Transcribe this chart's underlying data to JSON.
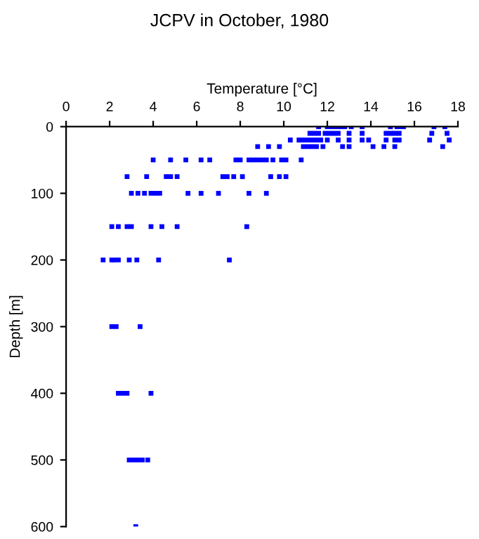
{
  "chart_data": {
    "type": "scatter",
    "title": "JCPV in October, 1980",
    "xlabel": "Temperature [°C]",
    "ylabel": "Depth [m]",
    "xlim": [
      0,
      18
    ],
    "xticks": [
      0,
      2,
      4,
      6,
      8,
      10,
      12,
      14,
      16,
      18
    ],
    "ylim": [
      600,
      0
    ],
    "yticks": [
      0,
      100,
      200,
      300,
      400,
      500,
      600
    ],
    "grid": false,
    "legend": false,
    "marker": "square",
    "series": [
      {
        "color": "#0000ff",
        "x": [
          11.6,
          12.0,
          12.2,
          12.4,
          12.6,
          12.8,
          13.1,
          13.6,
          14.9,
          15.2,
          15.3,
          15.5,
          16.9,
          17.4,
          11.2,
          11.4,
          11.6,
          11.9,
          12.1,
          12.3,
          12.5,
          13.0,
          13.6,
          14.7,
          14.9,
          15.1,
          15.3,
          16.8,
          17.5,
          10.3,
          10.7,
          10.9,
          11.1,
          11.3,
          11.5,
          11.7,
          12.0,
          12.5,
          13.0,
          13.6,
          13.9,
          14.7,
          15.1,
          15.3,
          16.7,
          17.6,
          8.8,
          9.3,
          9.8,
          10.9,
          11.1,
          11.3,
          11.5,
          11.8,
          12.7,
          13.0,
          14.1,
          14.6,
          15.1,
          17.3,
          4.0,
          4.8,
          5.5,
          6.2,
          6.6,
          7.8,
          8.0,
          8.4,
          8.6,
          8.8,
          9.0,
          9.2,
          9.5,
          9.9,
          10.1,
          10.8,
          2.8,
          3.7,
          4.6,
          4.8,
          5.1,
          7.2,
          7.4,
          7.7,
          8.1,
          9.4,
          9.8,
          10.1,
          3.0,
          3.3,
          3.6,
          3.9,
          4.1,
          4.3,
          5.6,
          6.2,
          7.0,
          8.4,
          9.2,
          2.1,
          2.4,
          2.8,
          3.0,
          3.9,
          4.4,
          5.1,
          8.3,
          1.7,
          2.1,
          2.2,
          2.4,
          2.9,
          3.25,
          4.25,
          7.5,
          2.1,
          2.3,
          3.4,
          2.4,
          2.6,
          2.8,
          3.9,
          2.9,
          3.1,
          3.3,
          3.5,
          3.75,
          3.2
        ],
        "values": [
          0,
          0,
          0,
          0,
          0,
          0,
          0,
          0,
          0,
          0,
          0,
          0,
          0,
          0,
          10,
          10,
          10,
          10,
          10,
          10,
          10,
          10,
          10,
          10,
          10,
          10,
          10,
          10,
          10,
          20,
          20,
          20,
          20,
          20,
          20,
          20,
          20,
          20,
          20,
          20,
          20,
          20,
          20,
          20,
          20,
          20,
          30,
          30,
          30,
          30,
          30,
          30,
          30,
          30,
          30,
          30,
          30,
          30,
          30,
          30,
          50,
          50,
          50,
          50,
          50,
          50,
          50,
          50,
          50,
          50,
          50,
          50,
          50,
          50,
          50,
          50,
          75,
          75,
          75,
          75,
          75,
          75,
          75,
          75,
          75,
          75,
          75,
          75,
          100,
          100,
          100,
          100,
          100,
          100,
          100,
          100,
          100,
          100,
          100,
          150,
          150,
          150,
          150,
          150,
          150,
          150,
          150,
          200,
          200,
          200,
          200,
          200,
          200,
          200,
          200,
          300,
          300,
          300,
          400,
          400,
          400,
          400,
          500,
          500,
          500,
          500,
          500,
          600
        ]
      }
    ]
  }
}
